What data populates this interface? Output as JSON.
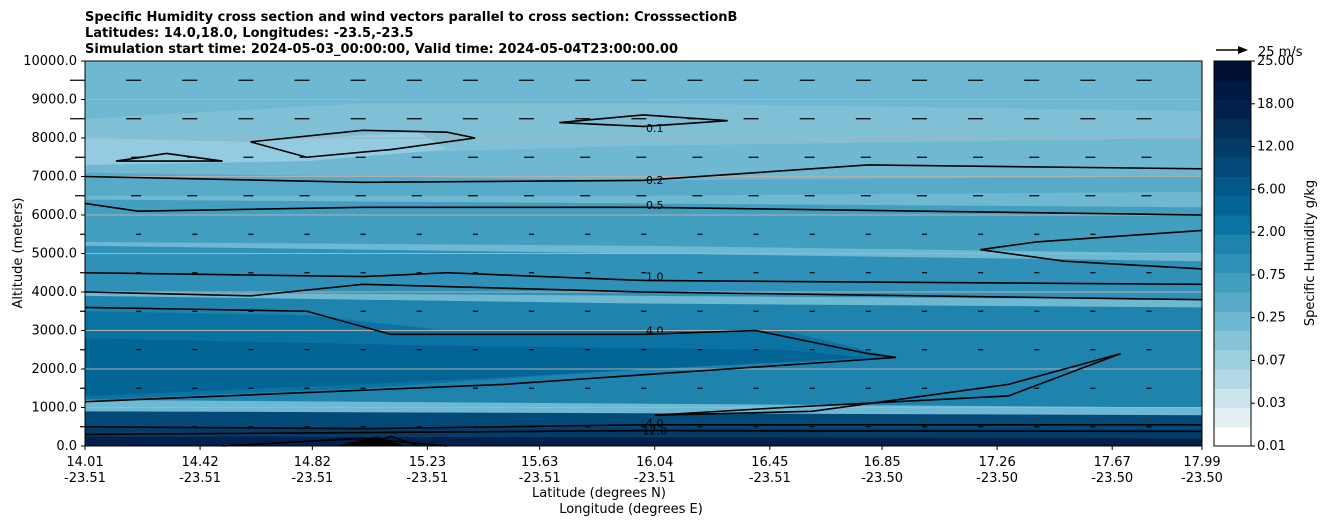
{
  "chart_data": {
    "type": "contour",
    "title_lines": [
      "Specific Humidity cross section and wind vectors parallel to cross section: CrosssectionB",
      "Latitudes: 14.0,18.0, Longitudes: -23.5,-23.5",
      "Simulation start time: 2024-05-03_00:00:00, Valid time: 2024-05-04T23:00:00.00"
    ],
    "xlabel_lat": "Latitude (degrees N)",
    "xlabel_lon": "Longitude (degrees E)",
    "ylabel": "Altitude (meters)",
    "ylim": [
      0,
      10000
    ],
    "y_ticks": [
      "0.0",
      "1000.0",
      "2000.0",
      "3000.0",
      "4000.0",
      "5000.0",
      "6000.0",
      "7000.0",
      "8000.0",
      "9000.0",
      "10000.0"
    ],
    "x_lat_ticks": [
      "14.01",
      "14.42",
      "14.82",
      "15.23",
      "15.63",
      "16.04",
      "16.45",
      "16.85",
      "17.26",
      "17.67",
      "17.99"
    ],
    "x_lon_ticks": [
      "-23.51",
      "-23.51",
      "-23.51",
      "-23.51",
      "-23.51",
      "-23.51",
      "-23.51",
      "-23.50",
      "-23.50",
      "-23.50",
      "-23.50"
    ],
    "grid": "horizontal",
    "colorbar": {
      "label": "Specific Humidity g/kg",
      "tick_labels": [
        "0.01",
        "0.03",
        "0.07",
        "0.25",
        "0.75",
        "2.00",
        "6.00",
        "12.00",
        "18.00",
        "25.00"
      ],
      "colors": [
        "#ffffff",
        "#e4f1f4",
        "#cce5ec",
        "#b3d9e5",
        "#9dcfdf",
        "#85c3d8",
        "#6fb8d1",
        "#58abc8",
        "#439fc0",
        "#2f91b7",
        "#1e83ad",
        "#0b73a3",
        "#026596",
        "#025887",
        "#034a78",
        "#033c69",
        "#032e5a",
        "#02204b",
        "#011840",
        "#010f35"
      ]
    },
    "contour_levels": [
      "0.1",
      "0.2",
      "0.5",
      "1.0",
      "4.0",
      "12.0"
    ],
    "contour_labels": [
      {
        "text": "0.1",
        "x": 16.04,
        "y": 8150
      },
      {
        "text": "0.2",
        "x": 16.04,
        "y": 6800
      },
      {
        "text": "0.5",
        "x": 16.04,
        "y": 6150
      },
      {
        "text": "1.0",
        "x": 16.04,
        "y": 4300
      },
      {
        "text": "4.0",
        "x": 16.04,
        "y": 2900
      },
      {
        "text": "4.0",
        "x": 16.04,
        "y": 500
      },
      {
        "text": "12.0",
        "x": 16.04,
        "y": 300
      }
    ],
    "quiver_key": "25 m/s"
  }
}
